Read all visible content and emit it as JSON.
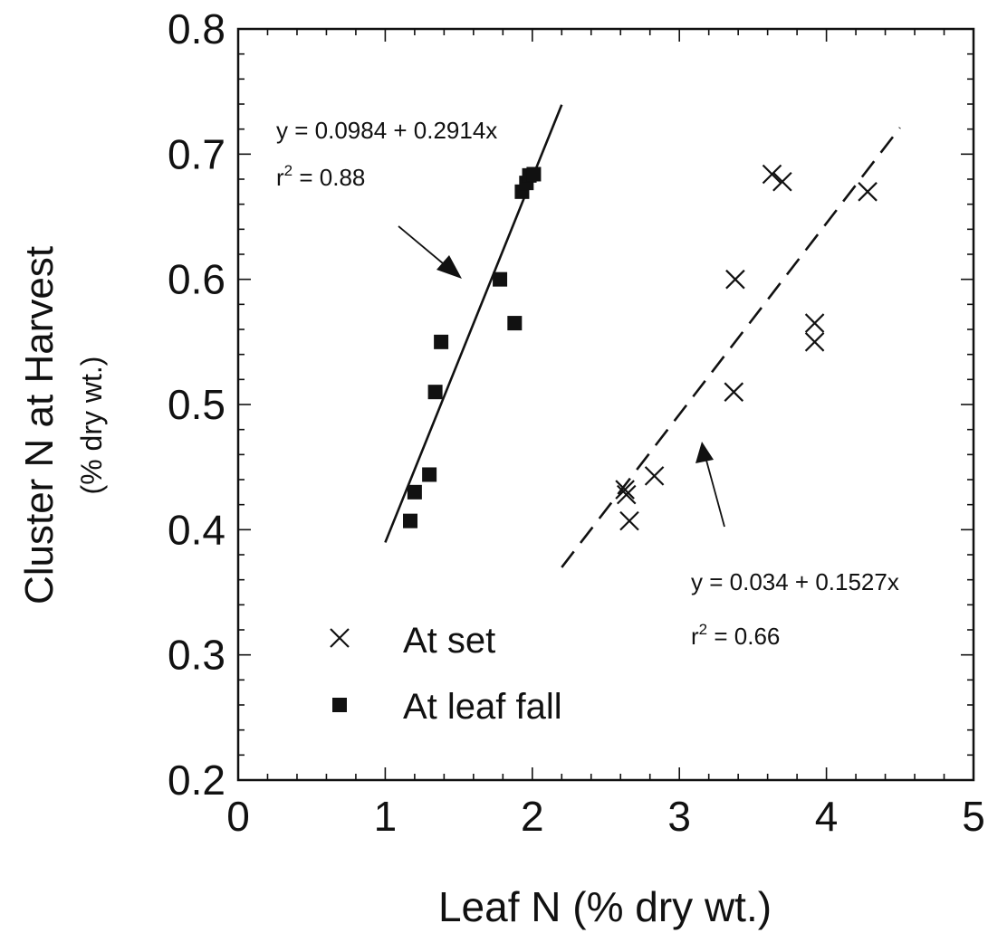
{
  "chart_data": {
    "type": "scatter",
    "xlabel": "Leaf N (% dry wt.)",
    "ylabel": "Cluster N at Harvest",
    "ylabel_sub": "(% dry wt.)",
    "xlim": [
      0,
      5
    ],
    "ylim": [
      0.2,
      0.8
    ],
    "x_ticks": [
      0,
      1,
      2,
      3,
      4,
      5
    ],
    "y_ticks": [
      0.2,
      0.3,
      0.4,
      0.5,
      0.6,
      0.7,
      0.8
    ],
    "x_tick_labels": [
      "0",
      "1",
      "2",
      "3",
      "4",
      "5"
    ],
    "y_tick_labels": [
      "0.2",
      "0.3",
      "0.4",
      "0.5",
      "0.6",
      "0.7",
      "0.8"
    ],
    "series": [
      {
        "name": "At set",
        "marker": "x",
        "points": [
          [
            2.63,
            0.432
          ],
          [
            2.64,
            0.428
          ],
          [
            2.66,
            0.407
          ],
          [
            2.83,
            0.443
          ],
          [
            3.37,
            0.51
          ],
          [
            3.38,
            0.6
          ],
          [
            3.63,
            0.684
          ],
          [
            3.7,
            0.678
          ],
          [
            3.92,
            0.565
          ],
          [
            3.92,
            0.55
          ],
          [
            4.28,
            0.67
          ]
        ],
        "fit": {
          "style": "dashed",
          "intercept": 0.034,
          "slope": 0.1527,
          "x_range": [
            2.2,
            4.5
          ],
          "equation": "y = 0.034 + 0.1527x",
          "r2_prefix": "r",
          "r2_sup": "2",
          "r2_value": " = 0.66"
        }
      },
      {
        "name": "At leaf fall",
        "marker": "square",
        "points": [
          [
            1.17,
            0.407
          ],
          [
            1.2,
            0.43
          ],
          [
            1.3,
            0.444
          ],
          [
            1.34,
            0.51
          ],
          [
            1.38,
            0.55
          ],
          [
            1.78,
            0.6
          ],
          [
            1.88,
            0.565
          ],
          [
            1.93,
            0.67
          ],
          [
            1.96,
            0.677
          ],
          [
            1.98,
            0.683
          ],
          [
            2.01,
            0.684
          ]
        ],
        "fit": {
          "style": "solid",
          "intercept": 0.0984,
          "slope": 0.2914,
          "x_range": [
            1.0,
            2.2
          ],
          "equation": "y = 0.0984 + 0.2914x",
          "r2_prefix": "r",
          "r2_sup": "2",
          "r2_value": " = 0.88"
        }
      }
    ],
    "legend": {
      "placement": "lower-left",
      "items": [
        {
          "marker": "x",
          "label": "At set"
        },
        {
          "marker": "square",
          "label": "At leaf fall"
        }
      ]
    },
    "grid": false
  }
}
